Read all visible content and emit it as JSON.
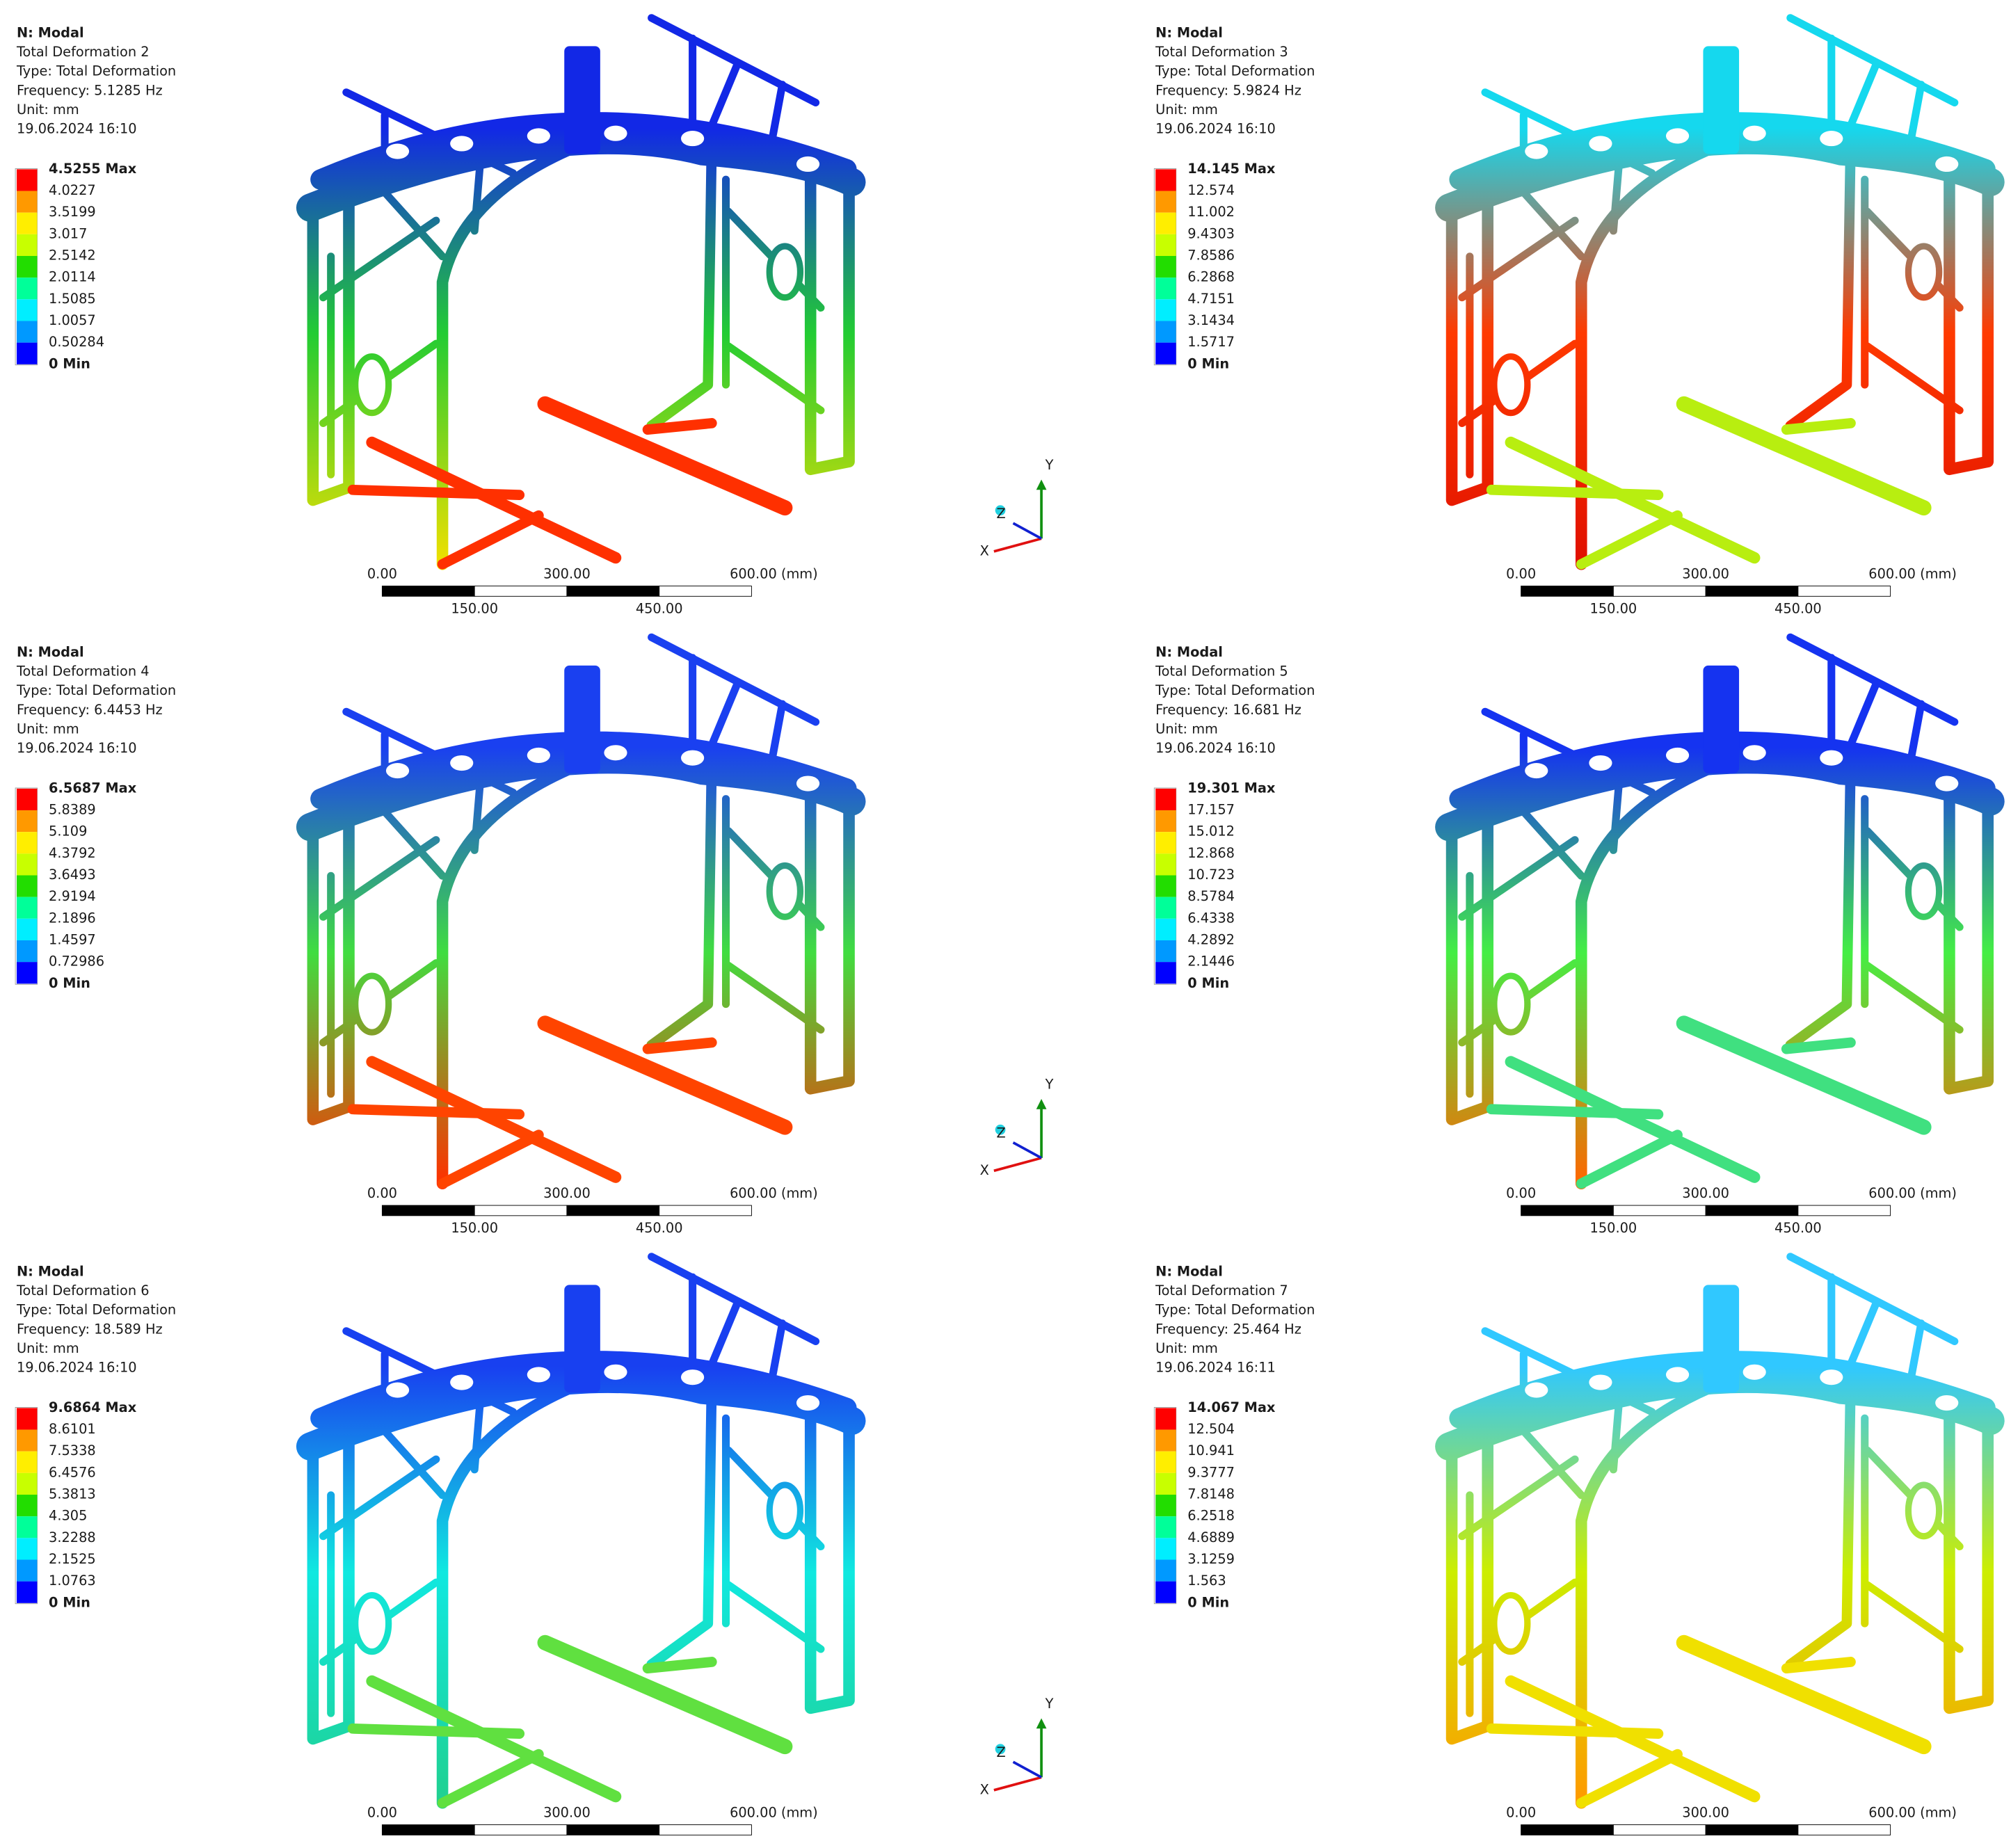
{
  "panels": [
    {
      "system": "N: Modal",
      "title": "Total Deformation 2",
      "type": "Type: Total Deformation",
      "frequency": "Frequency: 5.1285 Hz",
      "unit": "Unit: mm",
      "timestamp": "19.06.2024 16:10",
      "legend": [
        "4.5255 Max",
        "4.0227",
        "3.5199",
        "3.017",
        "2.5142",
        "2.0114",
        "1.5085",
        "1.0057",
        "0.50284",
        "0 Min"
      ],
      "scale_top": [
        "0.00",
        "300.00",
        "600.00 (mm)"
      ],
      "scale_bottom": [
        "150.00",
        "450.00"
      ],
      "triad": [
        "Y",
        "Z",
        "X"
      ]
    },
    {
      "system": "N: Modal",
      "title": "Total Deformation 3",
      "type": "Type: Total Deformation",
      "frequency": "Frequency: 5.9824 Hz",
      "unit": "Unit: mm",
      "timestamp": "19.06.2024 16:10",
      "legend": [
        "14.145 Max",
        "12.574",
        "11.002",
        "9.4303",
        "7.8586",
        "6.2868",
        "4.7151",
        "3.1434",
        "1.5717",
        "0 Min"
      ],
      "scale_top": [
        "0.00",
        "300.00",
        "600.00 (mm)"
      ],
      "scale_bottom": [
        "150.00",
        "450.00"
      ]
    },
    {
      "system": "N: Modal",
      "title": "Total Deformation 4",
      "type": "Type: Total Deformation",
      "frequency": "Frequency: 6.4453 Hz",
      "unit": "Unit: mm",
      "timestamp": "19.06.2024 16:10",
      "legend": [
        "6.5687 Max",
        "5.8389",
        "5.109",
        "4.3792",
        "3.6493",
        "2.9194",
        "2.1896",
        "1.4597",
        "0.72986",
        "0 Min"
      ],
      "scale_top": [
        "0.00",
        "300.00",
        "600.00 (mm)"
      ],
      "scale_bottom": [
        "150.00",
        "450.00"
      ],
      "triad": [
        "Y",
        "Z",
        "X"
      ]
    },
    {
      "system": "N: Modal",
      "title": "Total Deformation 5",
      "type": "Type: Total Deformation",
      "frequency": "Frequency: 16.681 Hz",
      "unit": "Unit: mm",
      "timestamp": "19.06.2024 16:10",
      "legend": [
        "19.301 Max",
        "17.157",
        "15.012",
        "12.868",
        "10.723",
        "8.5784",
        "6.4338",
        "4.2892",
        "2.1446",
        "0 Min"
      ],
      "scale_top": [
        "0.00",
        "300.00",
        "600.00 (mm)"
      ],
      "scale_bottom": [
        "150.00",
        "450.00"
      ]
    },
    {
      "system": "N: Modal",
      "title": "Total Deformation 6",
      "type": "Type: Total Deformation",
      "frequency": "Frequency: 18.589 Hz",
      "unit": "Unit: mm",
      "timestamp": "19.06.2024 16:10",
      "legend": [
        "9.6864 Max",
        "8.6101",
        "7.5338",
        "6.4576",
        "5.3813",
        "4.305",
        "3.2288",
        "2.1525",
        "1.0763",
        "0 Min"
      ],
      "scale_top": [
        "0.00",
        "300.00",
        "600.00 (mm)"
      ],
      "scale_bottom": [],
      "triad": [
        "Y",
        "Z",
        "X"
      ]
    },
    {
      "system": "N: Modal",
      "title": "Total Deformation 7",
      "type": "Type: Total Deformation",
      "frequency": "Frequency: 25.464 Hz",
      "unit": "Unit: mm",
      "timestamp": "19.06.2024 16:11",
      "legend": [
        "14.067 Max",
        "12.504",
        "10.941",
        "9.3777",
        "7.8148",
        "6.2518",
        "4.6889",
        "3.1259",
        "1.563",
        "0 Min"
      ],
      "scale_top": [
        "0.00",
        "300.00",
        "600.00 (mm)"
      ],
      "scale_bottom": []
    }
  ]
}
